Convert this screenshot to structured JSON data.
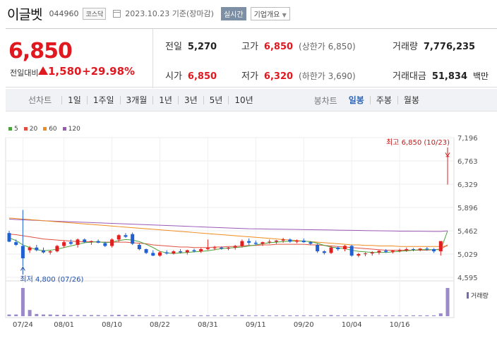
{
  "header": {
    "name": "이글벳",
    "code": "044960",
    "market_badge": "코스닥",
    "date": "2023.10.23 기준(장마감)",
    "realtime_label": "실시간",
    "overview_label": "기업개요"
  },
  "quote": {
    "price": "6,850",
    "diff_label": "전일대비",
    "diff_value": "1,580",
    "diff_rate": "+29.98%",
    "prev_label": "전일",
    "prev_value": "5,270",
    "high_label": "고가",
    "high_value": "6,850",
    "high_sub": "(상한가 6,850)",
    "volume_label": "거래량",
    "volume_value": "7,776,235",
    "open_label": "시가",
    "open_value": "6,850",
    "low_label": "저가",
    "low_value": "6,320",
    "low_sub": "(하한가 3,690)",
    "amount_label": "거래대금",
    "amount_value": "51,834",
    "amount_unit": "백만"
  },
  "periods": {
    "line_label": "선차트",
    "items": [
      "1일",
      "1주일",
      "3개월",
      "1년",
      "3년",
      "5년",
      "10년"
    ],
    "candle_label": "봉차트",
    "candle_items": [
      "일봉",
      "주봉",
      "월봉"
    ],
    "active_candle": 0
  },
  "legend": [
    {
      "label": "5",
      "color": "#4aa33a"
    },
    {
      "label": "20",
      "color": "#e05040"
    },
    {
      "label": "60",
      "color": "#f08c1e"
    },
    {
      "label": "120",
      "color": "#9b59b6"
    }
  ],
  "chart_data": {
    "type": "candlestick",
    "y_ticks": [
      "7,196",
      "6,763",
      "6,329",
      "5,896",
      "5,462",
      "5,029",
      "4,595"
    ],
    "y_tick_values": [
      7196,
      6763,
      6329,
      5896,
      5462,
      5029,
      4595
    ],
    "ylim": [
      4595,
      7196
    ],
    "x_ticks": [
      "07/24",
      "08/01",
      "08/10",
      "08/22",
      "08/31",
      "09/11",
      "09/20",
      "10/04",
      "10/16"
    ],
    "x_tick_index": [
      2,
      8,
      15,
      22,
      29,
      36,
      43,
      50,
      57
    ],
    "high_annotation": "최고 6,850 (10/23)",
    "low_annotation": "최저 4,800 (07/26)",
    "volume_label": "거래량",
    "candles": [
      [
        5420,
        5460,
        5250,
        5260
      ],
      [
        5250,
        5300,
        5180,
        5200
      ],
      [
        5180,
        5850,
        4800,
        4950
      ],
      [
        5100,
        5180,
        5050,
        5150
      ],
      [
        5150,
        5200,
        5080,
        5100
      ],
      [
        5100,
        5150,
        5040,
        5060
      ],
      [
        5060,
        5100,
        5020,
        5080
      ],
      [
        5080,
        5200,
        5060,
        5180
      ],
      [
        5180,
        5280,
        5150,
        5250
      ],
      [
        5250,
        5300,
        5200,
        5220
      ],
      [
        5200,
        5320,
        5150,
        5300
      ],
      [
        5300,
        5320,
        5230,
        5250
      ],
      [
        5250,
        5280,
        5200,
        5270
      ],
      [
        5270,
        5300,
        5230,
        5240
      ],
      [
        5230,
        5260,
        5160,
        5180
      ],
      [
        5180,
        5320,
        5150,
        5300
      ],
      [
        5300,
        5400,
        5260,
        5380
      ],
      [
        5380,
        5420,
        5330,
        5350
      ],
      [
        5400,
        5430,
        5200,
        5220
      ],
      [
        5200,
        5230,
        5100,
        5120
      ],
      [
        5120,
        5130,
        5030,
        5050
      ],
      [
        5050,
        5100,
        4990,
        5000
      ],
      [
        5000,
        5080,
        4980,
        5060
      ],
      [
        5060,
        5100,
        5020,
        5040
      ],
      [
        5040,
        5100,
        5020,
        5080
      ],
      [
        5080,
        5120,
        5040,
        5060
      ],
      [
        5060,
        5110,
        5020,
        5100
      ],
      [
        5100,
        5130,
        5060,
        5080
      ],
      [
        5080,
        5140,
        5050,
        5120
      ],
      [
        5120,
        5300,
        5100,
        5140
      ],
      [
        5140,
        5180,
        5100,
        5150
      ],
      [
        5150,
        5170,
        5110,
        5130
      ],
      [
        5130,
        5160,
        5100,
        5150
      ],
      [
        5150,
        5200,
        5110,
        5180
      ],
      [
        5180,
        5300,
        5150,
        5270
      ],
      [
        5270,
        5320,
        5200,
        5240
      ],
      [
        5240,
        5280,
        5200,
        5220
      ],
      [
        5220,
        5260,
        5180,
        5250
      ],
      [
        5250,
        5300,
        5220,
        5260
      ],
      [
        5260,
        5290,
        5220,
        5280
      ],
      [
        5280,
        5330,
        5240,
        5300
      ],
      [
        5300,
        5320,
        5240,
        5260
      ],
      [
        5260,
        5300,
        5230,
        5280
      ],
      [
        5280,
        5320,
        5240,
        5250
      ],
      [
        5250,
        5270,
        5200,
        5220
      ],
      [
        5200,
        5220,
        5050,
        5080
      ],
      [
        5080,
        5100,
        5020,
        5050
      ],
      [
        5050,
        5180,
        5030,
        5150
      ],
      [
        5150,
        5170,
        5090,
        5120
      ],
      [
        5120,
        5200,
        5080,
        5180
      ],
      [
        5180,
        5200,
        4980,
        5000
      ],
      [
        5000,
        5050,
        4970,
        5030
      ],
      [
        5030,
        5060,
        4990,
        5040
      ],
      [
        5040,
        5080,
        5000,
        5060
      ],
      [
        5060,
        5100,
        5020,
        5090
      ],
      [
        5090,
        5120,
        5050,
        5070
      ],
      [
        5070,
        5100,
        5040,
        5090
      ],
      [
        5090,
        5130,
        5060,
        5100
      ],
      [
        5100,
        5150,
        5070,
        5120
      ],
      [
        5120,
        5140,
        5080,
        5110
      ],
      [
        5110,
        5140,
        5080,
        5130
      ],
      [
        5130,
        5160,
        5090,
        5120
      ],
      [
        5120,
        5140,
        5050,
        5080
      ],
      [
        5080,
        5270,
        5000,
        5270
      ],
      [
        6850,
        6850,
        6320,
        6850
      ]
    ],
    "ma5": [
      5330,
      5280,
      5200,
      5150,
      5110,
      5090,
      5100,
      5120,
      5150,
      5180,
      5210,
      5240,
      5250,
      5260,
      5240,
      5250,
      5280,
      5300,
      5290,
      5260,
      5210,
      5150,
      5080,
      5050,
      5040,
      5050,
      5060,
      5070,
      5080,
      5090,
      5110,
      5130,
      5140,
      5150,
      5160,
      5180,
      5200,
      5220,
      5240,
      5250,
      5260,
      5270,
      5270,
      5270,
      5260,
      5230,
      5190,
      5160,
      5140,
      5130,
      5100,
      5080,
      5070,
      5060,
      5060,
      5060,
      5070,
      5080,
      5090,
      5100,
      5110,
      5110,
      5110,
      5110,
      5460
    ],
    "ma20": [
      5400,
      5390,
      5370,
      5350,
      5330,
      5310,
      5300,
      5290,
      5280,
      5270,
      5260,
      5260,
      5260,
      5250,
      5250,
      5250,
      5250,
      5250,
      5240,
      5230,
      5220,
      5200,
      5190,
      5180,
      5170,
      5160,
      5160,
      5150,
      5150,
      5150,
      5160,
      5160,
      5170,
      5170,
      5180,
      5190,
      5190,
      5200,
      5200,
      5210,
      5210,
      5210,
      5210,
      5210,
      5200,
      5200,
      5190,
      5180,
      5170,
      5160,
      5150,
      5140,
      5130,
      5120,
      5110,
      5100,
      5100,
      5100,
      5100,
      5100,
      5100,
      5100,
      5110,
      5120,
      5200
    ],
    "ma60": [
      5700,
      5690,
      5680,
      5670,
      5660,
      5650,
      5640,
      5630,
      5620,
      5610,
      5600,
      5590,
      5580,
      5570,
      5560,
      5550,
      5540,
      5530,
      5520,
      5510,
      5500,
      5490,
      5480,
      5470,
      5460,
      5450,
      5440,
      5430,
      5420,
      5410,
      5400,
      5390,
      5380,
      5370,
      5360,
      5350,
      5340,
      5330,
      5320,
      5310,
      5300,
      5290,
      5280,
      5270,
      5260,
      5250,
      5240,
      5230,
      5220,
      5210,
      5200,
      5200,
      5190,
      5190,
      5180,
      5180,
      5180,
      5170,
      5170,
      5170,
      5170,
      5170,
      5170,
      5170,
      5180
    ],
    "ma120": [
      5680,
      5670,
      5665,
      5660,
      5655,
      5650,
      5645,
      5640,
      5635,
      5630,
      5625,
      5620,
      5615,
      5610,
      5605,
      5600,
      5595,
      5590,
      5585,
      5580,
      5575,
      5570,
      5565,
      5560,
      5555,
      5550,
      5545,
      5540,
      5535,
      5530,
      5525,
      5520,
      5515,
      5510,
      5505,
      5500,
      5498,
      5496,
      5494,
      5492,
      5490,
      5488,
      5486,
      5484,
      5482,
      5480,
      5478,
      5476,
      5474,
      5472,
      5470,
      5468,
      5466,
      5464,
      5462,
      5460,
      5458,
      5456,
      5455,
      5454,
      5453,
      5452,
      5451,
      5450,
      5460
    ],
    "volume": [
      0.06,
      0.06,
      1.0,
      0.22,
      0.08,
      0.06,
      0.06,
      0.05,
      0.05,
      0.04,
      0.04,
      0.04,
      0.04,
      0.04,
      0.03,
      0.04,
      0.05,
      0.04,
      0.04,
      0.04,
      0.03,
      0.03,
      0.03,
      0.03,
      0.03,
      0.03,
      0.03,
      0.03,
      0.03,
      0.03,
      0.03,
      0.03,
      0.03,
      0.03,
      0.04,
      0.03,
      0.03,
      0.03,
      0.03,
      0.03,
      0.03,
      0.03,
      0.03,
      0.03,
      0.03,
      0.03,
      0.03,
      0.04,
      0.03,
      0.03,
      0.03,
      0.03,
      0.03,
      0.03,
      0.03,
      0.03,
      0.03,
      0.03,
      0.03,
      0.03,
      0.03,
      0.03,
      0.03,
      0.1,
      1.0
    ]
  }
}
